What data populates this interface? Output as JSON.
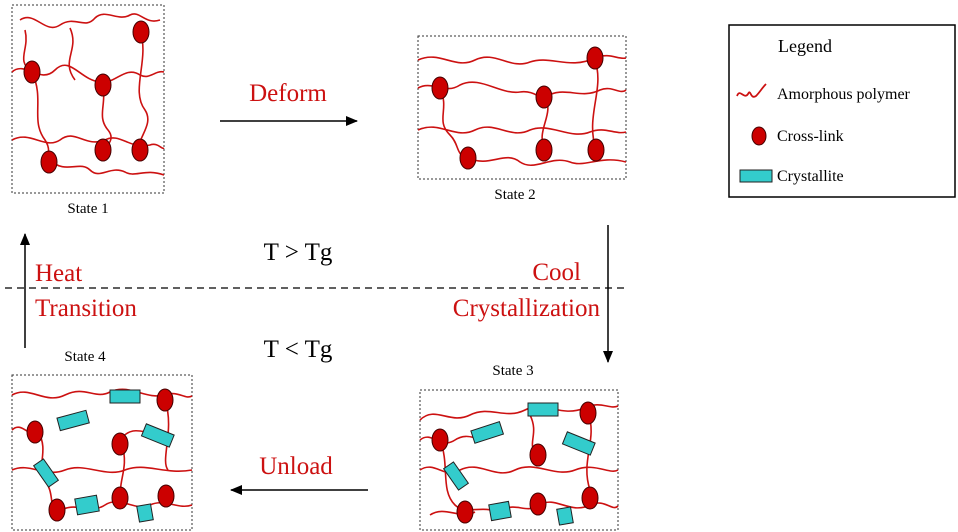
{
  "states": {
    "state1": "State 1",
    "state2": "State 2",
    "state3": "State 3",
    "state4": "State 4"
  },
  "transitions": {
    "deform": "Deform",
    "cool": "Cool",
    "crystallization": "Crystallization",
    "unload": "Unload",
    "heat": "Heat",
    "transition": "Transition"
  },
  "conditions": {
    "above": "T > Tg",
    "below": "T < Tg"
  },
  "legend": {
    "title": "Legend",
    "amorphous": "Amorphous polymer",
    "crosslink": "Cross-link",
    "crystallite": "Crystallite"
  },
  "colors": {
    "polymer": "#cc1111",
    "crosslink": "#cc0000",
    "crystallite": "#33cccc"
  }
}
